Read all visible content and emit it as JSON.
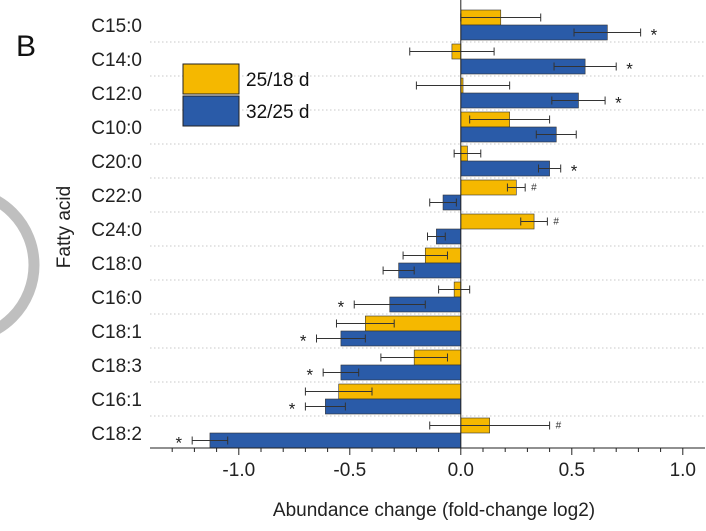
{
  "panel_label": "B",
  "chart_data": {
    "type": "bar",
    "orientation": "horizontal",
    "title": "",
    "xlabel": "Abundance change (fold-change log2)",
    "ylabel": "Fatty acid",
    "xlim": [
      -1.4,
      1.1
    ],
    "xticks": [
      -1.0,
      -0.5,
      0.0,
      0.5,
      1.0
    ],
    "xtick_labels": [
      "-1.0",
      "-0.5",
      "0.0",
      "0.5",
      "1.0"
    ],
    "grid": "dotted horizontal separators",
    "legend": {
      "placement": "top-left"
    },
    "categories": [
      "C15:0",
      "C14:0",
      "C12:0",
      "C10:0",
      "C20:0",
      "C22:0",
      "C24:0",
      "C18:0",
      "C16:0",
      "C18:1",
      "C18:3",
      "C16:1",
      "C18:2"
    ],
    "series": [
      {
        "name": "25/18 d",
        "color": "#F5B800",
        "values": [
          0.18,
          -0.04,
          0.01,
          0.22,
          0.03,
          0.25,
          0.33,
          -0.16,
          -0.03,
          -0.43,
          -0.21,
          -0.55,
          0.13
        ],
        "errors": [
          0.18,
          0.19,
          0.21,
          0.18,
          0.06,
          0.04,
          0.06,
          0.1,
          0.07,
          0.13,
          0.15,
          0.15,
          0.27
        ],
        "significance": [
          "",
          "",
          "",
          "",
          "",
          "#",
          "#",
          "",
          "",
          "",
          "",
          "",
          "#"
        ]
      },
      {
        "name": "32/25 d",
        "color": "#2A5BA8",
        "values": [
          0.66,
          0.56,
          0.53,
          0.43,
          0.4,
          -0.08,
          -0.11,
          -0.28,
          -0.32,
          -0.54,
          -0.54,
          -0.61,
          -1.13
        ],
        "errors": [
          0.15,
          0.14,
          0.12,
          0.09,
          0.05,
          0.06,
          0.04,
          0.07,
          0.16,
          0.11,
          0.08,
          0.09,
          0.08
        ],
        "significance": [
          "*",
          "*",
          "*",
          "",
          "*",
          "",
          "",
          "",
          "*",
          "*",
          "*",
          "*",
          "*"
        ]
      }
    ]
  }
}
